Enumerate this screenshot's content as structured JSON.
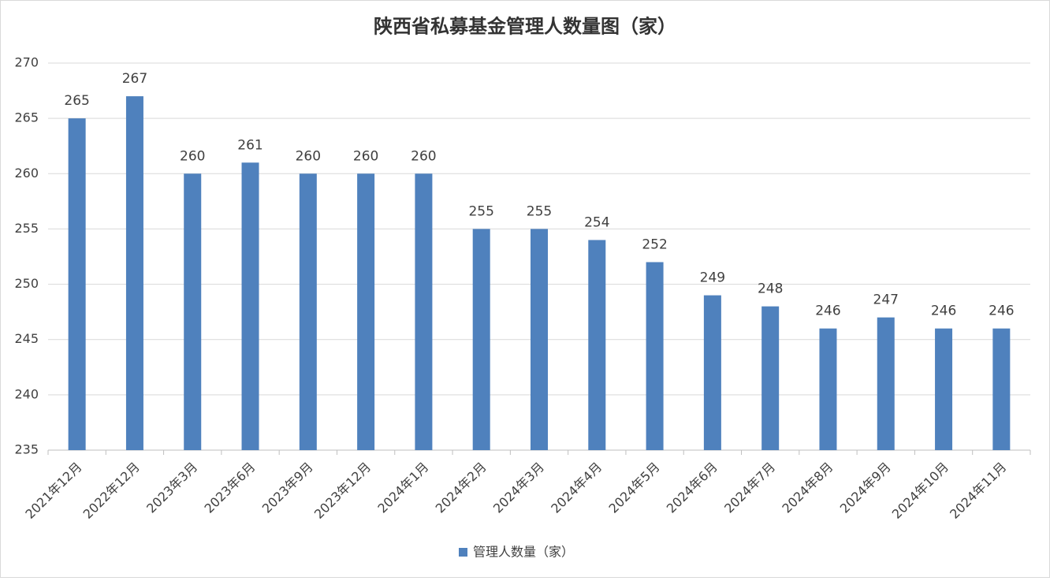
{
  "chart_data": {
    "type": "bar",
    "title": "陕西省私募基金管理人数量图（家）",
    "categories": [
      "2021年12月",
      "2022年12月",
      "2023年3月",
      "2023年6月",
      "2023年9月",
      "2023年12月",
      "2024年1月",
      "2024年2月",
      "2024年3月",
      "2024年4月",
      "2024年5月",
      "2024年6月",
      "2024年7月",
      "2024年8月",
      "2024年9月",
      "2024年10月",
      "2024年11月"
    ],
    "series": [
      {
        "name": "管理人数量（家）",
        "color": "#4f81bd",
        "values": [
          265,
          267,
          260,
          261,
          260,
          260,
          260,
          255,
          255,
          254,
          252,
          249,
          248,
          246,
          247,
          246,
          246
        ]
      }
    ],
    "ylim": [
      235,
      270
    ],
    "yticks": [
      235,
      240,
      245,
      250,
      255,
      260,
      265,
      270
    ],
    "grid": true,
    "legend": "bottom"
  }
}
